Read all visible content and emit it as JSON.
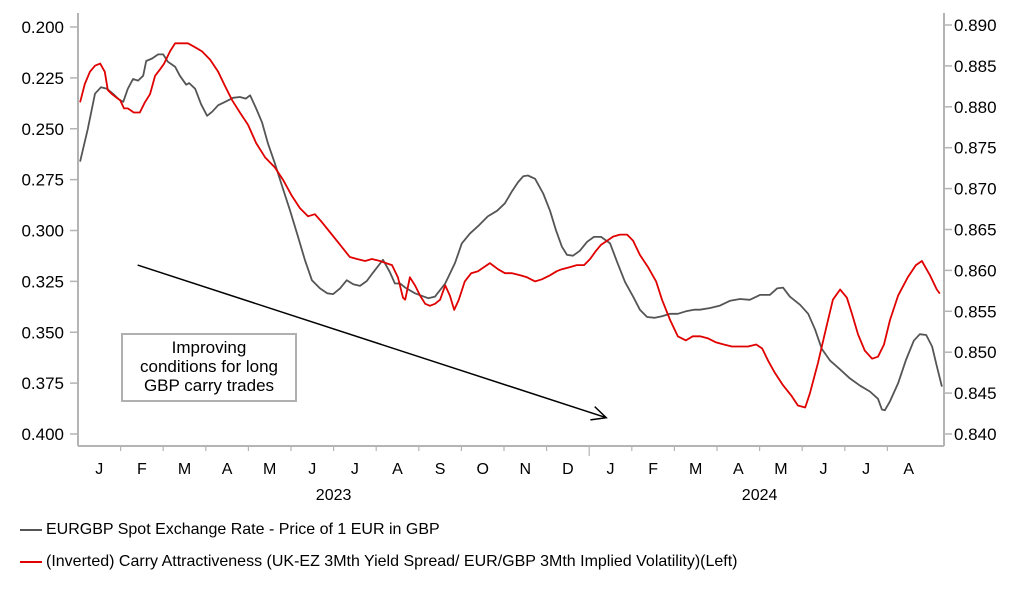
{
  "chart_data": {
    "type": "line",
    "title": "",
    "xlabel": "",
    "x_axis": {
      "month_labels": [
        "J",
        "F",
        "M",
        "A",
        "M",
        "J",
        "J",
        "A",
        "S",
        "O",
        "N",
        "D",
        "J",
        "F",
        "M",
        "A",
        "M",
        "J",
        "J",
        "A"
      ],
      "year_labels": [
        {
          "year": "2023",
          "center_month_index": 6
        },
        {
          "year": "2024",
          "center_month_index": 16
        }
      ],
      "range_months": [
        0,
        20
      ],
      "x_unit": "months since start of Jan 2023"
    },
    "y_left": {
      "label": "",
      "inverted": true,
      "range": [
        0.2,
        0.4
      ],
      "ticks": [
        "0.200",
        "0.225",
        "0.250",
        "0.275",
        "0.300",
        "0.325",
        "0.350",
        "0.375",
        "0.400"
      ]
    },
    "y_right": {
      "label": "",
      "range": [
        0.84,
        0.89
      ],
      "ticks": [
        "0.890",
        "0.885",
        "0.880",
        "0.875",
        "0.870",
        "0.865",
        "0.860",
        "0.855",
        "0.850",
        "0.845",
        "0.840"
      ]
    },
    "grid": false,
    "legend_position": "bottom-left",
    "series": [
      {
        "name": "EURGBP Spot Exchange Rate - Price of 1 EUR in GBP",
        "axis": "right",
        "color": "#555555",
        "points": [
          [
            0.05,
            0.8733
          ],
          [
            0.23,
            0.8773
          ],
          [
            0.4,
            0.8816
          ],
          [
            0.54,
            0.8824
          ],
          [
            0.68,
            0.8822
          ],
          [
            0.82,
            0.8816
          ],
          [
            0.96,
            0.8809
          ],
          [
            1.06,
            0.8806
          ],
          [
            1.17,
            0.8822
          ],
          [
            1.29,
            0.8834
          ],
          [
            1.41,
            0.8832
          ],
          [
            1.53,
            0.8838
          ],
          [
            1.6,
            0.8856
          ],
          [
            1.74,
            0.8859
          ],
          [
            1.88,
            0.8864
          ],
          [
            2.0,
            0.8864
          ],
          [
            2.11,
            0.8855
          ],
          [
            2.28,
            0.8849
          ],
          [
            2.39,
            0.8838
          ],
          [
            2.54,
            0.8827
          ],
          [
            2.61,
            0.8829
          ],
          [
            2.75,
            0.8822
          ],
          [
            2.89,
            0.8803
          ],
          [
            3.03,
            0.8789
          ],
          [
            3.15,
            0.8794
          ],
          [
            3.29,
            0.8802
          ],
          [
            3.45,
            0.8806
          ],
          [
            3.64,
            0.8811
          ],
          [
            3.8,
            0.8812
          ],
          [
            3.94,
            0.881
          ],
          [
            4.04,
            0.8814
          ],
          [
            4.18,
            0.8798
          ],
          [
            4.32,
            0.8781
          ],
          [
            4.46,
            0.8755
          ],
          [
            4.62,
            0.8731
          ],
          [
            4.79,
            0.8703
          ],
          [
            4.98,
            0.8673
          ],
          [
            5.16,
            0.8642
          ],
          [
            5.33,
            0.8612
          ],
          [
            5.49,
            0.8588
          ],
          [
            5.68,
            0.8578
          ],
          [
            5.85,
            0.8572
          ],
          [
            5.99,
            0.8571
          ],
          [
            6.15,
            0.8578
          ],
          [
            6.31,
            0.8588
          ],
          [
            6.46,
            0.8583
          ],
          [
            6.62,
            0.8581
          ],
          [
            6.78,
            0.8587
          ],
          [
            6.92,
            0.8597
          ],
          [
            7.16,
            0.8613
          ],
          [
            7.32,
            0.8598
          ],
          [
            7.44,
            0.8584
          ],
          [
            7.56,
            0.8584
          ],
          [
            7.68,
            0.8579
          ],
          [
            7.91,
            0.8572
          ],
          [
            8.22,
            0.8566
          ],
          [
            8.38,
            0.8568
          ],
          [
            8.62,
            0.8584
          ],
          [
            8.85,
            0.8609
          ],
          [
            9.01,
            0.8633
          ],
          [
            9.2,
            0.8645
          ],
          [
            9.39,
            0.8654
          ],
          [
            9.62,
            0.8666
          ],
          [
            9.84,
            0.8673
          ],
          [
            10.02,
            0.8682
          ],
          [
            10.19,
            0.8697
          ],
          [
            10.33,
            0.8708
          ],
          [
            10.45,
            0.8715
          ],
          [
            10.56,
            0.8716
          ],
          [
            10.73,
            0.8712
          ],
          [
            10.92,
            0.8694
          ],
          [
            11.08,
            0.8673
          ],
          [
            11.22,
            0.8649
          ],
          [
            11.36,
            0.8629
          ],
          [
            11.48,
            0.8619
          ],
          [
            11.62,
            0.8618
          ],
          [
            11.78,
            0.8624
          ],
          [
            11.95,
            0.8635
          ],
          [
            12.11,
            0.8641
          ],
          [
            12.28,
            0.8641
          ],
          [
            12.49,
            0.8633
          ],
          [
            12.65,
            0.8611
          ],
          [
            12.84,
            0.8586
          ],
          [
            13.03,
            0.8568
          ],
          [
            13.19,
            0.8552
          ],
          [
            13.36,
            0.8543
          ],
          [
            13.54,
            0.8542
          ],
          [
            13.71,
            0.8544
          ],
          [
            13.9,
            0.8547
          ],
          [
            14.08,
            0.8547
          ],
          [
            14.27,
            0.855
          ],
          [
            14.46,
            0.8552
          ],
          [
            14.6,
            0.8552
          ],
          [
            14.84,
            0.8554
          ],
          [
            15.07,
            0.8557
          ],
          [
            15.31,
            0.8563
          ],
          [
            15.54,
            0.8565
          ],
          [
            15.77,
            0.8564
          ],
          [
            16.01,
            0.857
          ],
          [
            16.24,
            0.857
          ],
          [
            16.41,
            0.8578
          ],
          [
            16.55,
            0.8579
          ],
          [
            16.71,
            0.8568
          ],
          [
            16.95,
            0.8558
          ],
          [
            17.14,
            0.8547
          ],
          [
            17.3,
            0.8528
          ],
          [
            17.46,
            0.8504
          ],
          [
            17.65,
            0.849
          ],
          [
            17.89,
            0.8479
          ],
          [
            18.12,
            0.8468
          ],
          [
            18.36,
            0.8459
          ],
          [
            18.59,
            0.8452
          ],
          [
            18.78,
            0.8443
          ],
          [
            18.87,
            0.843
          ],
          [
            18.94,
            0.8429
          ],
          [
            19.06,
            0.844
          ],
          [
            19.25,
            0.8462
          ],
          [
            19.44,
            0.8491
          ],
          [
            19.62,
            0.8514
          ],
          [
            19.76,
            0.8522
          ],
          [
            19.91,
            0.8521
          ],
          [
            20.05,
            0.8507
          ],
          [
            20.16,
            0.8483
          ],
          [
            20.28,
            0.8458
          ]
        ]
      },
      {
        "name": "(Inverted) Carry Attractiveness (UK-EZ 3Mth Yield Spread/ EUR/GBP 3Mth Implied Volatility)(Left)",
        "axis": "left",
        "color": "#e00000",
        "points": [
          [
            0.05,
            0.237
          ],
          [
            0.16,
            0.228
          ],
          [
            0.28,
            0.222
          ],
          [
            0.4,
            0.219
          ],
          [
            0.52,
            0.218
          ],
          [
            0.63,
            0.222
          ],
          [
            0.7,
            0.231
          ],
          [
            0.8,
            0.233
          ],
          [
            0.92,
            0.235
          ],
          [
            0.99,
            0.236
          ],
          [
            1.08,
            0.24
          ],
          [
            1.17,
            0.24
          ],
          [
            1.31,
            0.242
          ],
          [
            1.45,
            0.242
          ],
          [
            1.57,
            0.237
          ],
          [
            1.69,
            0.233
          ],
          [
            1.81,
            0.224
          ],
          [
            1.92,
            0.221
          ],
          [
            2.02,
            0.218
          ],
          [
            2.16,
            0.212
          ],
          [
            2.28,
            0.208
          ],
          [
            2.44,
            0.208
          ],
          [
            2.58,
            0.208
          ],
          [
            2.75,
            0.21
          ],
          [
            2.91,
            0.212
          ],
          [
            3.1,
            0.216
          ],
          [
            3.29,
            0.222
          ],
          [
            3.45,
            0.229
          ],
          [
            3.62,
            0.236
          ],
          [
            3.8,
            0.242
          ],
          [
            3.99,
            0.248
          ],
          [
            4.18,
            0.257
          ],
          [
            4.39,
            0.264
          ],
          [
            4.62,
            0.269
          ],
          [
            4.81,
            0.275
          ],
          [
            5.02,
            0.283
          ],
          [
            5.21,
            0.289
          ],
          [
            5.4,
            0.293
          ],
          [
            5.56,
            0.292
          ],
          [
            5.73,
            0.296
          ],
          [
            5.92,
            0.301
          ],
          [
            6.15,
            0.307
          ],
          [
            6.38,
            0.313
          ],
          [
            6.55,
            0.314
          ],
          [
            6.74,
            0.315
          ],
          [
            6.9,
            0.314
          ],
          [
            7.09,
            0.315
          ],
          [
            7.23,
            0.316
          ],
          [
            7.37,
            0.317
          ],
          [
            7.51,
            0.323
          ],
          [
            7.63,
            0.333
          ],
          [
            7.68,
            0.334
          ],
          [
            7.79,
            0.323
          ],
          [
            7.91,
            0.327
          ],
          [
            8.03,
            0.332
          ],
          [
            8.15,
            0.336
          ],
          [
            8.26,
            0.337
          ],
          [
            8.38,
            0.336
          ],
          [
            8.5,
            0.334
          ],
          [
            8.62,
            0.327
          ],
          [
            8.73,
            0.332
          ],
          [
            8.83,
            0.339
          ],
          [
            8.94,
            0.334
          ],
          [
            9.08,
            0.325
          ],
          [
            9.23,
            0.321
          ],
          [
            9.39,
            0.32
          ],
          [
            9.53,
            0.318
          ],
          [
            9.67,
            0.316
          ],
          [
            9.86,
            0.319
          ],
          [
            10.02,
            0.321
          ],
          [
            10.19,
            0.321
          ],
          [
            10.38,
            0.322
          ],
          [
            10.54,
            0.323
          ],
          [
            10.73,
            0.325
          ],
          [
            10.89,
            0.324
          ],
          [
            11.08,
            0.322
          ],
          [
            11.24,
            0.32
          ],
          [
            11.36,
            0.319
          ],
          [
            11.55,
            0.318
          ],
          [
            11.71,
            0.317
          ],
          [
            11.88,
            0.317
          ],
          [
            12.02,
            0.314
          ],
          [
            12.16,
            0.31
          ],
          [
            12.28,
            0.307
          ],
          [
            12.42,
            0.305
          ],
          [
            12.56,
            0.303
          ],
          [
            12.72,
            0.302
          ],
          [
            12.89,
            0.302
          ],
          [
            13.03,
            0.305
          ],
          [
            13.19,
            0.312
          ],
          [
            13.38,
            0.318
          ],
          [
            13.57,
            0.325
          ],
          [
            13.71,
            0.334
          ],
          [
            13.9,
            0.344
          ],
          [
            14.08,
            0.352
          ],
          [
            14.27,
            0.354
          ],
          [
            14.43,
            0.352
          ],
          [
            14.6,
            0.352
          ],
          [
            14.79,
            0.353
          ],
          [
            14.98,
            0.355
          ],
          [
            15.16,
            0.356
          ],
          [
            15.35,
            0.357
          ],
          [
            15.54,
            0.357
          ],
          [
            15.73,
            0.357
          ],
          [
            15.92,
            0.356
          ],
          [
            16.06,
            0.358
          ],
          [
            16.2,
            0.364
          ],
          [
            16.36,
            0.37
          ],
          [
            16.55,
            0.376
          ],
          [
            16.74,
            0.381
          ],
          [
            16.9,
            0.386
          ],
          [
            17.07,
            0.387
          ],
          [
            17.18,
            0.38
          ],
          [
            17.37,
            0.365
          ],
          [
            17.56,
            0.348
          ],
          [
            17.72,
            0.334
          ],
          [
            17.89,
            0.329
          ],
          [
            18.05,
            0.333
          ],
          [
            18.17,
            0.341
          ],
          [
            18.31,
            0.351
          ],
          [
            18.47,
            0.359
          ],
          [
            18.64,
            0.363
          ],
          [
            18.78,
            0.362
          ],
          [
            18.92,
            0.356
          ],
          [
            19.06,
            0.344
          ],
          [
            19.25,
            0.332
          ],
          [
            19.48,
            0.323
          ],
          [
            19.67,
            0.317
          ],
          [
            19.81,
            0.315
          ],
          [
            20.0,
            0.322
          ],
          [
            20.16,
            0.329
          ],
          [
            20.23,
            0.331
          ]
        ]
      }
    ],
    "annotations": [
      {
        "type": "text-box",
        "lines": [
          "Improving",
          "conditions for long",
          "GBP carry trades"
        ]
      },
      {
        "type": "arrow",
        "from": {
          "month": 1.4,
          "axis_left": 0.317
        },
        "to": {
          "month": 12.4,
          "axis_left": 0.392
        }
      }
    ]
  },
  "legend": {
    "items": [
      {
        "label": "EURGBP Spot Exchange Rate - Price of 1 EUR in GBP",
        "color": "#555555"
      },
      {
        "label": "(Inverted) Carry Attractiveness (UK-EZ 3Mth Yield Spread/ EUR/GBP 3Mth Implied Volatility)(Left)",
        "color": "#e00000"
      }
    ]
  },
  "annotation_text": {
    "line1": "Improving",
    "line2": "conditions for long",
    "line3": "GBP carry trades"
  }
}
